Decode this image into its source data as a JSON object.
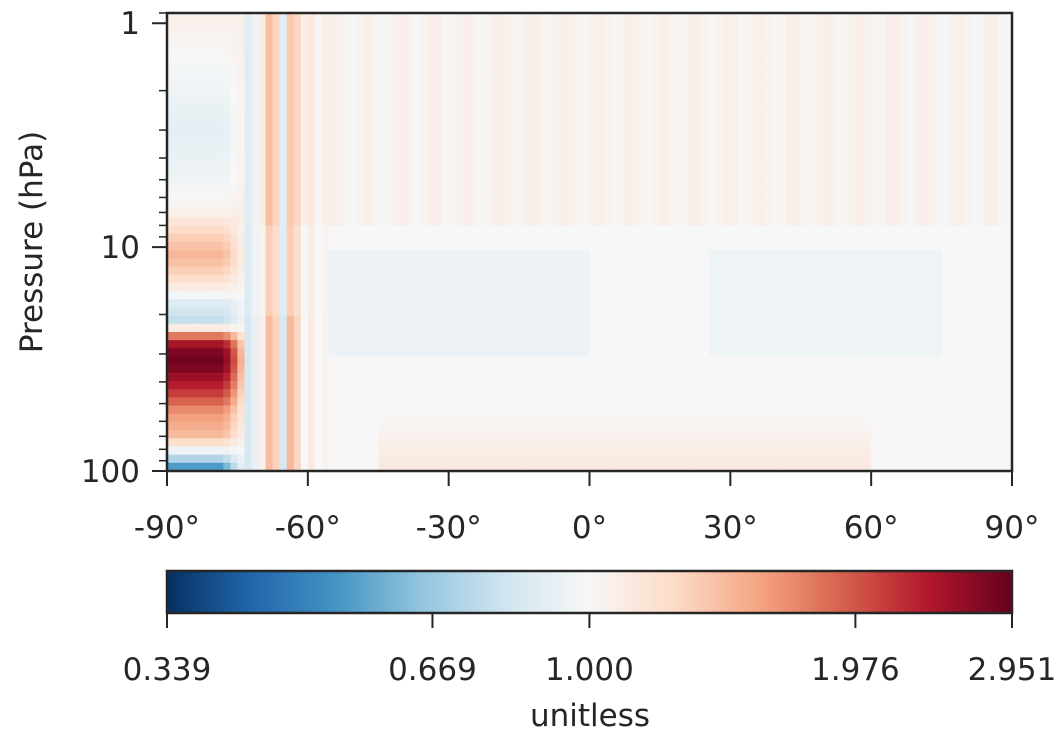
{
  "chart_data": {
    "type": "heatmap",
    "title": "",
    "xlabel": "",
    "ylabel": "Pressure (hPa)",
    "x_scale": "linear",
    "y_scale": "log",
    "y_inverted": true,
    "xlim": [
      -90,
      90
    ],
    "ylim": [
      100,
      0.9
    ],
    "x_ticks": [
      -90,
      -60,
      -30,
      0,
      30,
      60,
      90
    ],
    "x_tick_labels": [
      "-90°",
      "-60°",
      "-30°",
      "0°",
      "30°",
      "60°",
      "90°"
    ],
    "y_ticks": [
      1,
      10,
      100
    ],
    "y_tick_labels": [
      "1",
      "10",
      "100"
    ],
    "grid": false,
    "colormap": "RdBu_r",
    "colorbar": {
      "label": "unitless",
      "vmin": 0.339,
      "vcenter": 1.0,
      "vmax": 2.951,
      "ticks": [
        0.339,
        0.669,
        1.0,
        1.976,
        2.951
      ],
      "tick_labels": [
        "0.339",
        "0.669",
        "1.000",
        "1.976",
        "2.951"
      ],
      "orientation": "horizontal"
    },
    "features": [
      {
        "lat": [
          -90,
          -73
        ],
        "p": [
          100,
          10
        ],
        "values": [
          [
            100,
            0.45
          ],
          [
            85,
            0.8
          ],
          [
            70,
            1.4
          ],
          [
            55,
            1.6
          ],
          [
            42,
            2.3
          ],
          [
            33,
            2.9
          ],
          [
            28,
            2.7
          ],
          [
            22,
            0.75
          ],
          [
            18,
            0.85
          ],
          [
            14,
            1.2
          ],
          [
            11,
            1.45
          ],
          [
            9,
            1.3
          ],
          [
            7,
            1.05
          ],
          [
            5,
            0.95
          ],
          [
            3,
            0.9
          ],
          [
            2,
            0.95
          ],
          [
            1,
            1.05
          ]
        ]
      },
      {
        "lat": [
          -73,
          -55
        ],
        "p": [
          100,
          1
        ],
        "description": "alternating stripes",
        "values_range": [
          0.7,
          1.8
        ]
      },
      {
        "lat": [
          -55,
          0
        ],
        "p": [
          30,
          10
        ],
        "value": 0.93
      },
      {
        "lat": [
          25,
          75
        ],
        "p": [
          30,
          10
        ],
        "value": 0.95
      },
      {
        "lat": [
          -45,
          60
        ],
        "p": [
          100,
          55
        ],
        "value": 1.12
      },
      {
        "lat": [
          -55,
          90
        ],
        "p": [
          8,
          0.9
        ],
        "value": 1.05
      }
    ]
  }
}
